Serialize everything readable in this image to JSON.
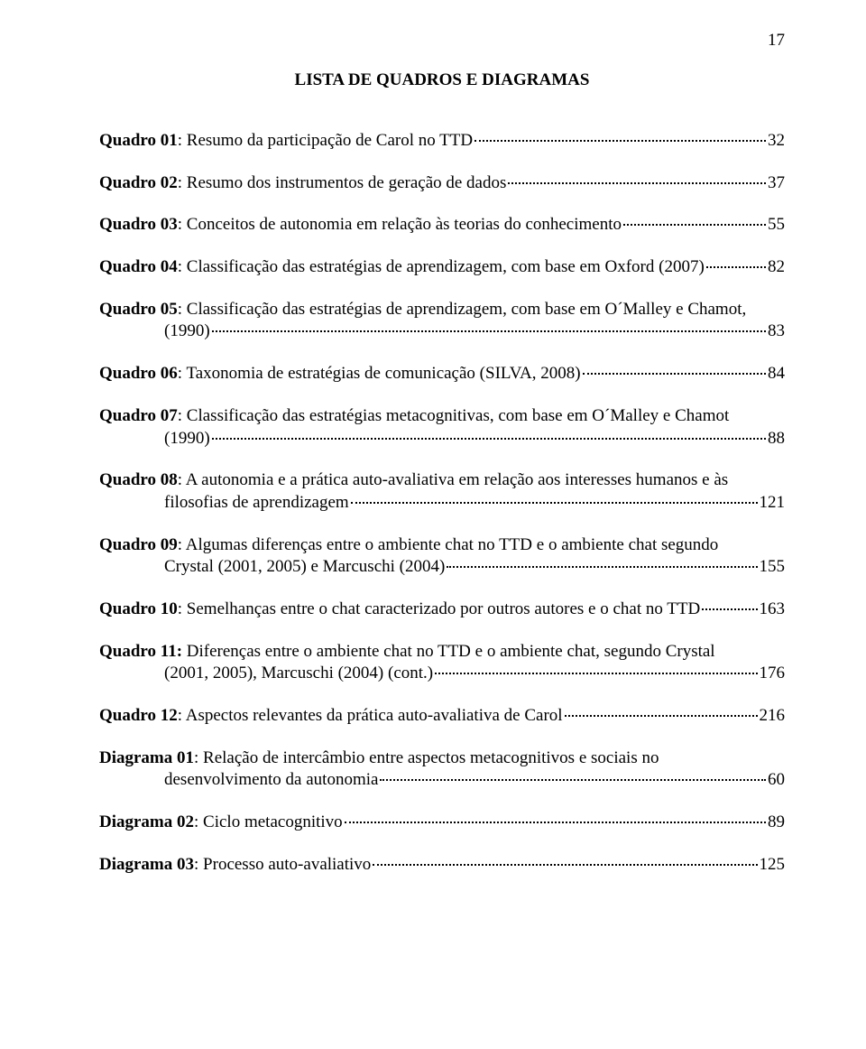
{
  "page_number": "17",
  "title": "LISTA DE QUADROS E DIAGRAMAS",
  "entries": [
    {
      "label": "Quadro 01",
      "first": ": Resumo da participação de Carol no TTD",
      "cont": "",
      "page": "32"
    },
    {
      "label": "Quadro 02",
      "first": ": Resumo dos instrumentos de geração de dados",
      "cont": "",
      "page": "37"
    },
    {
      "label": "Quadro 03",
      "first": ": Conceitos de autonomia em relação às teorias do conhecimento",
      "cont": "",
      "page": "55"
    },
    {
      "label": "Quadro 04",
      "first": ": Classificação das estratégias de aprendizagem, com base em Oxford (2007)",
      "cont": "",
      "page": "82"
    },
    {
      "label": "Quadro 05",
      "first": ": Classificação das estratégias de aprendizagem, com base em O´Malley e Chamot,",
      "cont": "(1990)",
      "page": "83"
    },
    {
      "label": "Quadro 06",
      "first": ": Taxonomia de estratégias de comunicação (SILVA, 2008)",
      "cont": "",
      "page": "84"
    },
    {
      "label": "Quadro 07",
      "first": ": Classificação das estratégias metacognitivas, com base em O´Malley e Chamot",
      "cont": "(1990)",
      "page": "88"
    },
    {
      "label": "Quadro 08",
      "first": ": A autonomia e a prática auto-avaliativa em relação aos interesses humanos e às",
      "cont": "filosofias de aprendizagem",
      "page": "121"
    },
    {
      "label": "Quadro 09",
      "first": ": Algumas diferenças entre o ambiente chat no TTD e o ambiente chat segundo",
      "cont": "Crystal (2001, 2005) e  Marcuschi (2004)",
      "page": "155"
    },
    {
      "label": "Quadro 10",
      "first": ": Semelhanças entre o chat caracterizado por outros autores e o chat no TTD",
      "cont": "",
      "page": "163"
    },
    {
      "label": "Quadro 11:",
      "first": " Diferenças entre o ambiente chat no TTD e o ambiente chat, segundo Crystal",
      "cont": "(2001, 2005), Marcuschi (2004) (cont.)",
      "page": "176"
    },
    {
      "label": "Quadro 12",
      "first": ": Aspectos relevantes da prática auto-avaliativa de Carol",
      "cont": "",
      "page": "216"
    },
    {
      "label": "Diagrama 01",
      "first": ": Relação de intercâmbio entre aspectos metacognitivos e sociais no",
      "cont": "desenvolvimento da autonomia",
      "page": "60"
    },
    {
      "label": "Diagrama 02",
      "first": ": Ciclo metacognitivo",
      "cont": "",
      "page": "89"
    },
    {
      "label": "Diagrama 03",
      "first": ": Processo auto-avaliativo",
      "cont": "",
      "page": "125"
    }
  ]
}
